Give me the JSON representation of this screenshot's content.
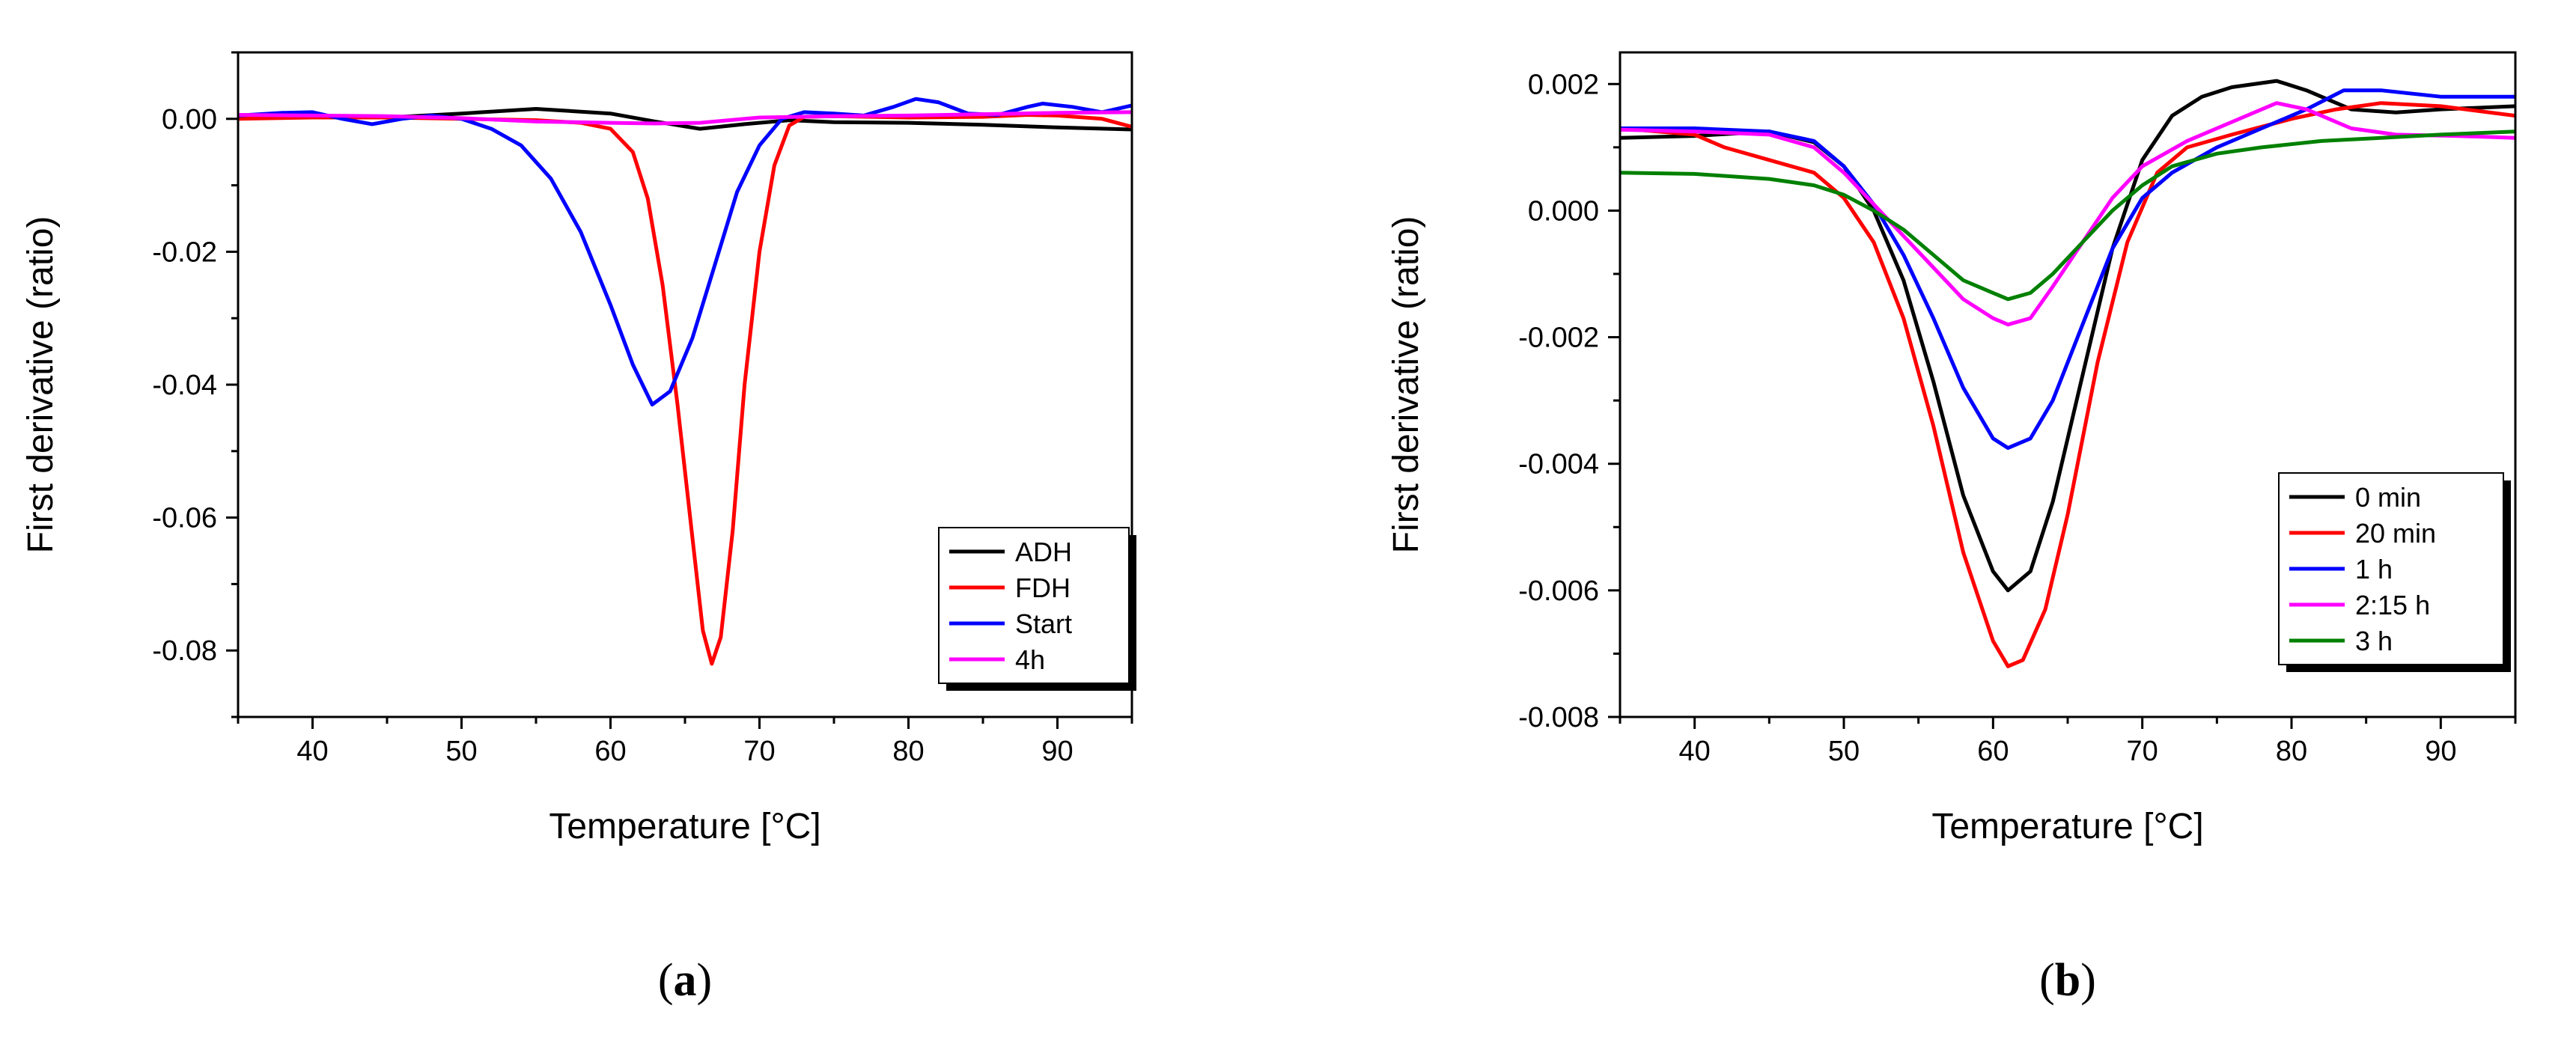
{
  "chart_data": [
    {
      "id": "a",
      "type": "line",
      "caption_letter": "a",
      "xlabel": "Temperature [°C]",
      "ylabel": "First derivative (ratio)",
      "xlim": [
        35,
        95
      ],
      "ylim": [
        -0.09,
        0.01
      ],
      "xticks": [
        40,
        50,
        60,
        70,
        80,
        90
      ],
      "xtick_labels": [
        "40",
        "50",
        "60",
        "70",
        "80",
        "90"
      ],
      "yticks": [
        0.0,
        -0.02,
        -0.04,
        -0.06,
        -0.08
      ],
      "ytick_labels": [
        "0.00",
        "-0.02",
        "-0.04",
        "-0.06",
        "-0.08"
      ],
      "legend_position": "bottom-right",
      "series": [
        {
          "name": "ADH",
          "color": "#000000",
          "points": [
            [
              35,
              0.0004
            ],
            [
              40,
              0.0003
            ],
            [
              45,
              0.0002
            ],
            [
              50,
              0.0008
            ],
            [
              55,
              0.0015
            ],
            [
              60,
              0.0008
            ],
            [
              63,
              -0.0004
            ],
            [
              66,
              -0.0015
            ],
            [
              69,
              -0.0008
            ],
            [
              72,
              -0.0002
            ],
            [
              75,
              -0.0005
            ],
            [
              80,
              -0.0006
            ],
            [
              85,
              -0.0009
            ],
            [
              90,
              -0.0013
            ],
            [
              95,
              -0.0016
            ]
          ]
        },
        {
          "name": "FDH",
          "color": "#ff0000",
          "points": [
            [
              35,
              0.0
            ],
            [
              40,
              0.0002
            ],
            [
              45,
              0.0002
            ],
            [
              50,
              0.0
            ],
            [
              55,
              -0.0002
            ],
            [
              58,
              -0.0006
            ],
            [
              60,
              -0.0015
            ],
            [
              61.5,
              -0.005
            ],
            [
              62.5,
              -0.012
            ],
            [
              63.5,
              -0.025
            ],
            [
              64.5,
              -0.043
            ],
            [
              65.5,
              -0.063
            ],
            [
              66.2,
              -0.077
            ],
            [
              66.8,
              -0.082
            ],
            [
              67.4,
              -0.078
            ],
            [
              68.2,
              -0.062
            ],
            [
              69,
              -0.04
            ],
            [
              70,
              -0.02
            ],
            [
              71,
              -0.007
            ],
            [
              72,
              -0.001
            ],
            [
              73,
              0.0003
            ],
            [
              75,
              0.0004
            ],
            [
              80,
              0.0002
            ],
            [
              85,
              0.0003
            ],
            [
              88,
              0.0006
            ],
            [
              90,
              0.0005
            ],
            [
              93,
              0.0
            ],
            [
              95,
              -0.0012
            ]
          ]
        },
        {
          "name": "Start",
          "color": "#0000ff",
          "points": [
            [
              35,
              0.0005
            ],
            [
              38,
              0.0009
            ],
            [
              40,
              0.001
            ],
            [
              42,
              0.0
            ],
            [
              44,
              -0.0008
            ],
            [
              46,
              0.0
            ],
            [
              48,
              0.0005
            ],
            [
              50,
              0.0
            ],
            [
              52,
              -0.0015
            ],
            [
              54,
              -0.004
            ],
            [
              56,
              -0.009
            ],
            [
              58,
              -0.017
            ],
            [
              60,
              -0.028
            ],
            [
              61.5,
              -0.037
            ],
            [
              62.8,
              -0.043
            ],
            [
              64,
              -0.041
            ],
            [
              65.5,
              -0.033
            ],
            [
              67,
              -0.022
            ],
            [
              68.5,
              -0.011
            ],
            [
              70,
              -0.004
            ],
            [
              71.5,
              0.0
            ],
            [
              73,
              0.001
            ],
            [
              75,
              0.0008
            ],
            [
              77,
              0.0005
            ],
            [
              79,
              0.0018
            ],
            [
              80.5,
              0.003
            ],
            [
              82,
              0.0025
            ],
            [
              84,
              0.0008
            ],
            [
              86,
              0.0006
            ],
            [
              88,
              0.0018
            ],
            [
              89,
              0.0023
            ],
            [
              91,
              0.0018
            ],
            [
              93,
              0.001
            ],
            [
              95,
              0.002
            ]
          ]
        },
        {
          "name": "4h",
          "color": "#ff00ff",
          "points": [
            [
              35,
              0.0006
            ],
            [
              40,
              0.0005
            ],
            [
              45,
              0.0004
            ],
            [
              50,
              0.0001
            ],
            [
              55,
              -0.0004
            ],
            [
              60,
              -0.0006
            ],
            [
              63,
              -0.0007
            ],
            [
              66,
              -0.0006
            ],
            [
              70,
              0.0002
            ],
            [
              75,
              0.0004
            ],
            [
              80,
              0.0005
            ],
            [
              85,
              0.0007
            ],
            [
              90,
              0.0009
            ],
            [
              95,
              0.001
            ]
          ]
        }
      ]
    },
    {
      "id": "b",
      "type": "line",
      "caption_letter": "b",
      "xlabel": "Temperature [°C]",
      "ylabel": "First derivative (ratio)",
      "xlim": [
        35,
        95
      ],
      "ylim": [
        -0.008,
        0.0025
      ],
      "xticks": [
        40,
        50,
        60,
        70,
        80,
        90
      ],
      "xtick_labels": [
        "40",
        "50",
        "60",
        "70",
        "80",
        "90"
      ],
      "yticks": [
        0.002,
        0.0,
        -0.002,
        -0.004,
        -0.006,
        -0.008
      ],
      "ytick_labels": [
        "0.002",
        "0.000",
        "-0.002",
        "-0.004",
        "-0.006",
        "-0.008"
      ],
      "legend_position": "bottom-right",
      "series": [
        {
          "name": "0 min",
          "color": "#000000",
          "points": [
            [
              35,
              0.00115
            ],
            [
              40,
              0.00118
            ],
            [
              45,
              0.00125
            ],
            [
              48,
              0.00108
            ],
            [
              50,
              0.0007
            ],
            [
              52,
              0.0
            ],
            [
              54,
              -0.0011
            ],
            [
              56,
              -0.0027
            ],
            [
              58,
              -0.0045
            ],
            [
              60,
              -0.0057
            ],
            [
              61,
              -0.006
            ],
            [
              62.5,
              -0.0057
            ],
            [
              64,
              -0.0046
            ],
            [
              66,
              -0.0026
            ],
            [
              68,
              -0.0006
            ],
            [
              70,
              0.0008
            ],
            [
              72,
              0.0015
            ],
            [
              74,
              0.0018
            ],
            [
              76,
              0.00195
            ],
            [
              79,
              0.00205
            ],
            [
              81,
              0.0019
            ],
            [
              84,
              0.0016
            ],
            [
              87,
              0.00155
            ],
            [
              90,
              0.0016
            ],
            [
              95,
              0.00165
            ]
          ]
        },
        {
          "name": "20 min",
          "color": "#ff0000",
          "points": [
            [
              35,
              0.0013
            ],
            [
              40,
              0.0012
            ],
            [
              42,
              0.001
            ],
            [
              45,
              0.0008
            ],
            [
              48,
              0.0006
            ],
            [
              50,
              0.0002
            ],
            [
              52,
              -0.0005
            ],
            [
              54,
              -0.0017
            ],
            [
              56,
              -0.0034
            ],
            [
              58,
              -0.0054
            ],
            [
              60,
              -0.0068
            ],
            [
              61,
              -0.0072
            ],
            [
              62,
              -0.0071
            ],
            [
              63.5,
              -0.0063
            ],
            [
              65,
              -0.0048
            ],
            [
              67,
              -0.0024
            ],
            [
              69,
              -0.0005
            ],
            [
              71,
              0.0006
            ],
            [
              73,
              0.001
            ],
            [
              76,
              0.0012
            ],
            [
              80,
              0.00145
            ],
            [
              83,
              0.0016
            ],
            [
              86,
              0.0017
            ],
            [
              90,
              0.00165
            ],
            [
              95,
              0.0015
            ]
          ]
        },
        {
          "name": "1 h",
          "color": "#0000ff",
          "points": [
            [
              35,
              0.0013
            ],
            [
              40,
              0.0013
            ],
            [
              45,
              0.00125
            ],
            [
              48,
              0.0011
            ],
            [
              50,
              0.0007
            ],
            [
              52,
              0.0001
            ],
            [
              54,
              -0.0007
            ],
            [
              56,
              -0.0017
            ],
            [
              58,
              -0.0028
            ],
            [
              60,
              -0.0036
            ],
            [
              61,
              -0.00375
            ],
            [
              62.5,
              -0.0036
            ],
            [
              64,
              -0.003
            ],
            [
              66,
              -0.0018
            ],
            [
              68,
              -0.0006
            ],
            [
              70,
              0.0002
            ],
            [
              72,
              0.0006
            ],
            [
              75,
              0.001
            ],
            [
              78,
              0.0013
            ],
            [
              81,
              0.0016
            ],
            [
              83.5,
              0.0019
            ],
            [
              86,
              0.0019
            ],
            [
              90,
              0.0018
            ],
            [
              95,
              0.0018
            ]
          ]
        },
        {
          "name": "2:15 h",
          "color": "#ff00ff",
          "points": [
            [
              35,
              0.00128
            ],
            [
              40,
              0.00125
            ],
            [
              45,
              0.0012
            ],
            [
              48,
              0.001
            ],
            [
              50,
              0.0006
            ],
            [
              52,
              0.0001
            ],
            [
              54,
              -0.0004
            ],
            [
              56,
              -0.0009
            ],
            [
              58,
              -0.0014
            ],
            [
              60,
              -0.0017
            ],
            [
              61,
              -0.0018
            ],
            [
              62.5,
              -0.0017
            ],
            [
              64,
              -0.0012
            ],
            [
              66,
              -0.0005
            ],
            [
              68,
              0.0002
            ],
            [
              70,
              0.0007
            ],
            [
              73,
              0.0011
            ],
            [
              76,
              0.0014
            ],
            [
              79,
              0.0017
            ],
            [
              81,
              0.0016
            ],
            [
              84,
              0.0013
            ],
            [
              87,
              0.0012
            ],
            [
              91,
              0.00118
            ],
            [
              95,
              0.00115
            ]
          ]
        },
        {
          "name": "3 h",
          "color": "#008000",
          "points": [
            [
              35,
              0.0006
            ],
            [
              40,
              0.00058
            ],
            [
              45,
              0.0005
            ],
            [
              48,
              0.0004
            ],
            [
              50,
              0.00025
            ],
            [
              52,
              0.0
            ],
            [
              54,
              -0.0003
            ],
            [
              56,
              -0.0007
            ],
            [
              58,
              -0.0011
            ],
            [
              60,
              -0.0013
            ],
            [
              61,
              -0.0014
            ],
            [
              62.5,
              -0.0013
            ],
            [
              64,
              -0.001
            ],
            [
              66,
              -0.0005
            ],
            [
              68,
              0.0
            ],
            [
              70,
              0.0004
            ],
            [
              72,
              0.0007
            ],
            [
              75,
              0.0009
            ],
            [
              78,
              0.001
            ],
            [
              82,
              0.0011
            ],
            [
              86,
              0.00115
            ],
            [
              90,
              0.0012
            ],
            [
              95,
              0.00125
            ]
          ]
        }
      ]
    }
  ]
}
